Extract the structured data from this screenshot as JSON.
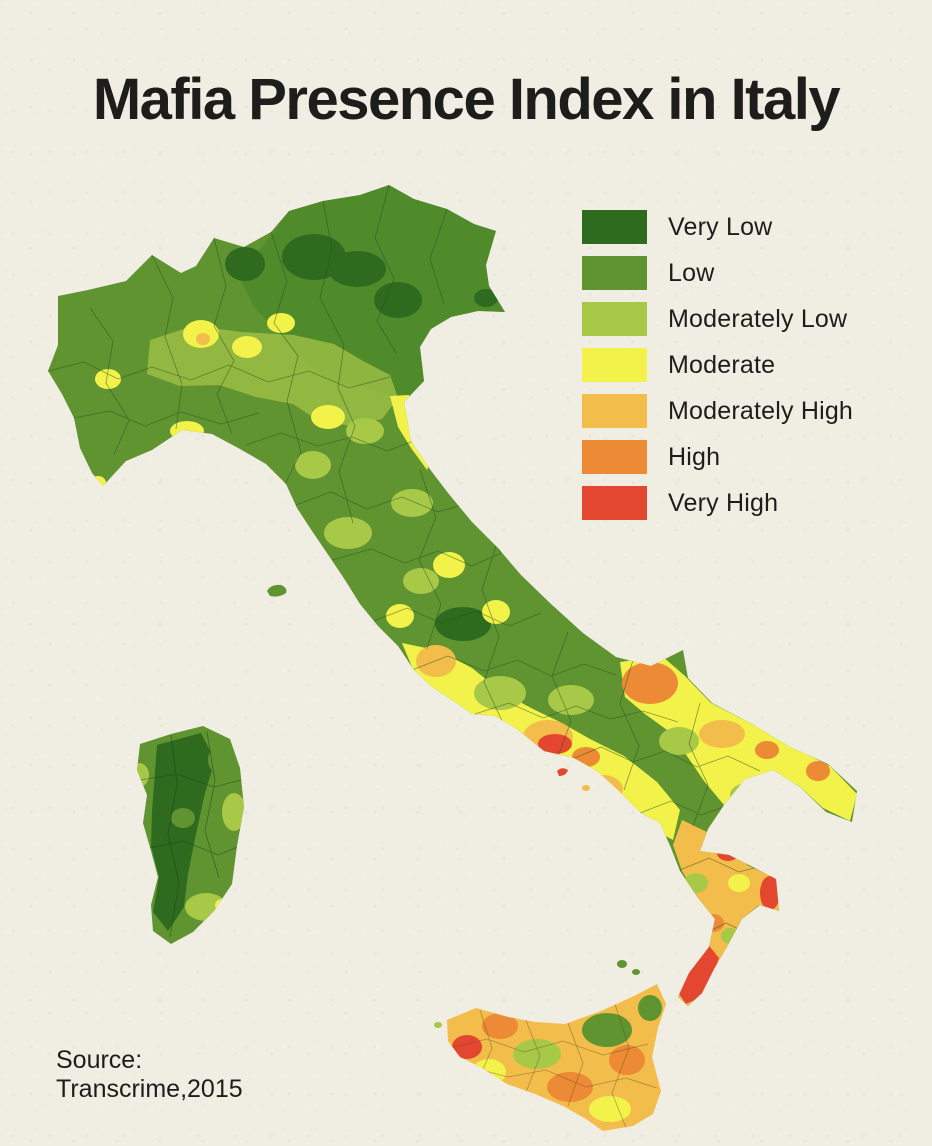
{
  "title": "Mafia Presence Index in Italy",
  "legend": {
    "items": [
      {
        "label": "Very Low",
        "color": "#2e6b1f"
      },
      {
        "label": "Low",
        "color": "#5f9431"
      },
      {
        "label": "Moderately Low",
        "color": "#a8c848"
      },
      {
        "label": "Moderate",
        "color": "#f2f24a"
      },
      {
        "label": "Moderately High",
        "color": "#f2bd4a"
      },
      {
        "label": "High",
        "color": "#ec8a35"
      },
      {
        "label": "Very High",
        "color": "#e4472f"
      }
    ]
  },
  "source": {
    "line1": "Source:",
    "line2": "Transcrime,2015"
  }
}
